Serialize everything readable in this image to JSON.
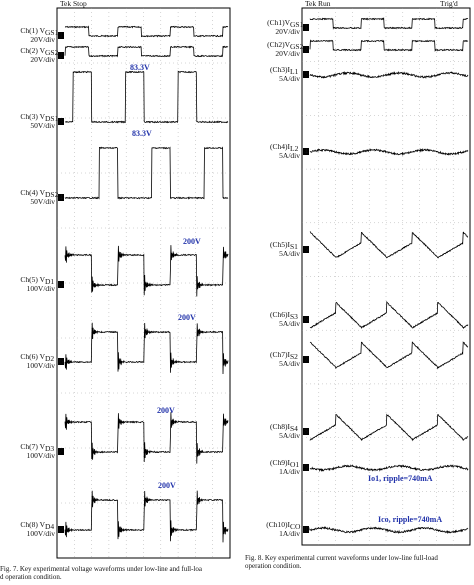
{
  "left": {
    "status": "Tek Stop",
    "channels": [
      {
        "name": "Ch(1) V",
        "sub": "GS1",
        "scale": "20V/div",
        "marker": "1"
      },
      {
        "name": "Ch(2) V",
        "sub": "GS2",
        "scale": "20V/div",
        "marker": "2"
      },
      {
        "name": "Ch(3) V",
        "sub": "DS1",
        "scale": "50V/div",
        "marker": "3"
      },
      {
        "name": "Ch(4) V",
        "sub": "DS2",
        "scale": "50V/div",
        "marker": "4"
      },
      {
        "name": "Ch(5) V",
        "sub": "D1",
        "scale": "100V/div",
        "marker": "5"
      },
      {
        "name": "Ch(6) V",
        "sub": "D2",
        "scale": "100V/div",
        "marker": "6"
      },
      {
        "name": "Ch(7) V",
        "sub": "D3",
        "scale": "100V/div",
        "marker": "7"
      },
      {
        "name": "Ch(8) V",
        "sub": "D4",
        "scale": "100V/div",
        "marker": "8"
      }
    ],
    "annotations": [
      "83.3V",
      "83.3V",
      "200V",
      "200V",
      "200V",
      "200V"
    ],
    "caption": "Fig. 7.   Key experimental voltage waveforms under low-line and full-load operation condition."
  },
  "right": {
    "status": "Tek Run",
    "trigger": "Trig'd",
    "channels": [
      {
        "name": "(Ch1)V",
        "sub": "GS1",
        "scale": "20V/div",
        "marker": "1"
      },
      {
        "name": "(Ch2)V",
        "sub": "GS2",
        "scale": "20V/div",
        "marker": "2"
      },
      {
        "name": "(Ch3)I",
        "sub": "L1",
        "scale": "5A/div",
        "marker": "3"
      },
      {
        "name": "(Ch4)I",
        "sub": "L2",
        "scale": "5A/div",
        "marker": "4"
      },
      {
        "name": "(Ch5)I",
        "sub": "S1",
        "scale": "5A/div",
        "marker": "5"
      },
      {
        "name": "(Ch6)I",
        "sub": "S3",
        "scale": "5A/div",
        "marker": "6"
      },
      {
        "name": "(Ch7)I",
        "sub": "S2",
        "scale": "5A/div",
        "marker": "7"
      },
      {
        "name": "(Ch8)I",
        "sub": "S4",
        "scale": "5A/div",
        "marker": "8"
      },
      {
        "name": "(Ch9)I",
        "sub": "O1",
        "scale": "1A/div",
        "marker": "9"
      },
      {
        "name": "(Ch10)I",
        "sub": "CO",
        "scale": "1A/div",
        "marker": "10"
      }
    ],
    "annotations": [
      "Io1, ripple=740mA",
      "Ico, ripple=740mA"
    ],
    "caption": "Fig. 8.   Key experimental current waveforms under low-line full-load operation condition."
  }
}
